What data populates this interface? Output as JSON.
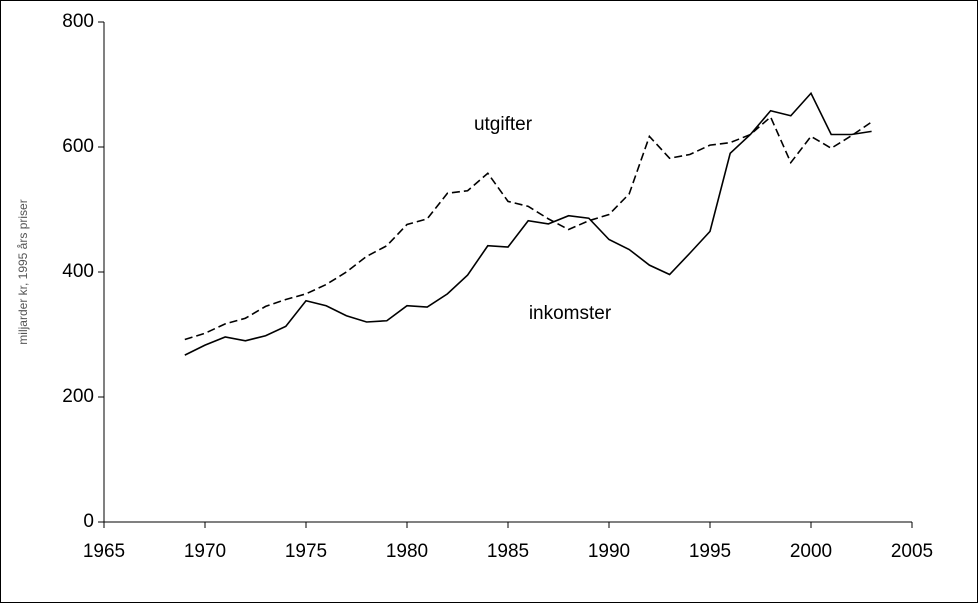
{
  "chart_data": {
    "type": "line",
    "y_label": "miljarder kr, 1995 års priser",
    "annotations": [
      "utgifter",
      "inkomster"
    ],
    "x": [
      1969,
      1970,
      1971,
      1972,
      1973,
      1974,
      1975,
      1976,
      1977,
      1978,
      1979,
      1980,
      1981,
      1982,
      1983,
      1984,
      1985,
      1986,
      1987,
      1988,
      1989,
      1990,
      1991,
      1992,
      1993,
      1994,
      1995,
      1996,
      1997,
      1998,
      1999,
      2000,
      2001,
      2002,
      2003
    ],
    "series": [
      {
        "name": "inkomster",
        "color": "#000000",
        "dash": "solid",
        "values": [
          267,
          283,
          296,
          290,
          298,
          313,
          354,
          346,
          330,
          320,
          322,
          346,
          344,
          365,
          395,
          442,
          440,
          482,
          477,
          490,
          486,
          452,
          436,
          411,
          396,
          430,
          465,
          590,
          620,
          658,
          650,
          686,
          620,
          620,
          625
        ]
      },
      {
        "name": "utgifter",
        "color": "#000000",
        "dash": "dashed",
        "values": [
          292,
          302,
          317,
          326,
          345,
          356,
          365,
          380,
          400,
          425,
          442,
          476,
          485,
          526,
          530,
          558,
          513,
          505,
          485,
          468,
          482,
          492,
          525,
          617,
          582,
          588,
          603,
          607,
          620,
          648,
          575,
          617,
          598,
          618,
          640
        ]
      }
    ],
    "xlim": [
      1965,
      2005
    ],
    "xticks": [
      1965,
      1970,
      1975,
      1980,
      1985,
      1990,
      1995,
      2000,
      2005
    ],
    "ylim": [
      0,
      800
    ],
    "yticks": [
      0,
      200,
      400,
      600,
      800
    ],
    "grid": false
  }
}
